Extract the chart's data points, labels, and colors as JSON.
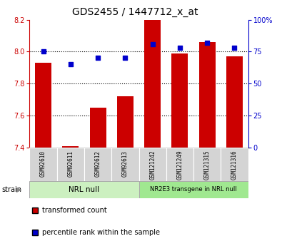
{
  "title": "GDS2455 / 1447712_x_at",
  "samples": [
    "GSM92610",
    "GSM92611",
    "GSM92612",
    "GSM92613",
    "GSM121242",
    "GSM121249",
    "GSM121315",
    "GSM121316"
  ],
  "bar_values": [
    7.93,
    7.41,
    7.65,
    7.72,
    8.2,
    7.99,
    8.06,
    7.97
  ],
  "scatter_values": [
    75,
    65,
    70,
    70,
    81,
    78,
    82,
    78
  ],
  "ylim_left": [
    7.4,
    8.2
  ],
  "ylim_right": [
    0,
    100
  ],
  "yticks_left": [
    7.4,
    7.6,
    7.8,
    8.0,
    8.2
  ],
  "yticks_right": [
    0,
    25,
    50,
    75,
    100
  ],
  "bar_color": "#cc0000",
  "scatter_color": "#0000cc",
  "bar_width": 0.6,
  "group1_label": "NRL null",
  "group2_label": "NR2E3 transgene in NRL null",
  "group1_indices": [
    0,
    1,
    2,
    3
  ],
  "group2_indices": [
    4,
    5,
    6,
    7
  ],
  "group1_color": "#ccf0c0",
  "group2_color": "#a0e890",
  "strain_label": "strain",
  "legend_bar_label": "transformed count",
  "legend_scatter_label": "percentile rank within the sample",
  "title_fontsize": 10,
  "tick_fontsize": 7,
  "base_value": 7.4,
  "left_axis_color": "#cc0000",
  "right_axis_color": "#0000cc"
}
